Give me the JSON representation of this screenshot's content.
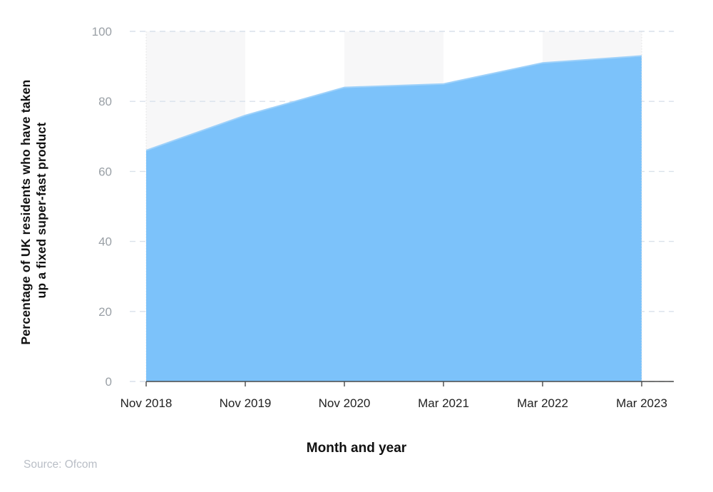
{
  "chart_data": {
    "type": "area",
    "categories": [
      "Nov 2018",
      "Nov 2019",
      "Nov 2020",
      "Mar 2021",
      "Mar 2022",
      "Mar 2023"
    ],
    "values": [
      66,
      76,
      84,
      85,
      91,
      93
    ],
    "title": "",
    "xlabel": "Month and year",
    "ylabel": "Percentage of UK residents who have taken up a fixed super-fast product",
    "ylabel_line1": "Percentage of UK residents who have taken",
    "ylabel_line2": "up a fixed super-fast product",
    "ylim": [
      0,
      100
    ],
    "yticks": [
      0,
      20,
      40,
      60,
      80,
      100
    ],
    "grid": "dashed-horizontal",
    "legend": "none",
    "plot_bands": "alternating category intervals shaded",
    "source": "Source: Ofcom",
    "colors": {
      "area_fill": "#7cc2fa",
      "area_edge": "#9ed1fa",
      "band_fill": "#f7f7f8",
      "gridline": "#d9e1eb",
      "boundary_dots": "#e2e2e2",
      "axis_line": "#4a4a4a",
      "y_tick_label": "#9aa0a6",
      "x_tick_label": "#222222",
      "axis_title": "#111111",
      "source_text": "#b9bec6"
    }
  }
}
